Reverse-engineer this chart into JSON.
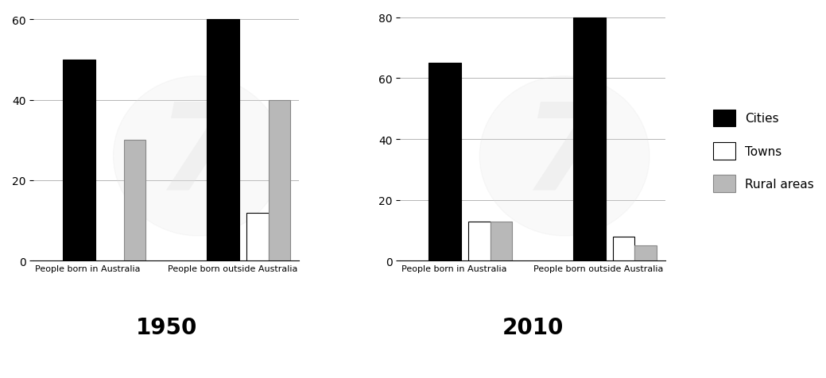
{
  "year1": "1950",
  "year2": "2010",
  "categories": [
    "People born in Australia",
    "People born outside Australia"
  ],
  "series": [
    "Cities",
    "Towns",
    "Rural areas"
  ],
  "colors": [
    "#000000",
    "#ffffff",
    "#b8b8b8"
  ],
  "edgecolors": [
    "#000000",
    "#000000",
    "#888888"
  ],
  "data_1950": {
    "People born in Australia": [
      50,
      0,
      30
    ],
    "People born outside Australia": [
      60,
      12,
      40
    ]
  },
  "data_2010": {
    "People born in Australia": [
      65,
      13,
      13
    ],
    "People born outside Australia": [
      80,
      8,
      5
    ]
  },
  "ylim_1950": [
    0,
    62
  ],
  "ylim_2010": [
    0,
    82
  ],
  "yticks_1950": [
    0,
    20,
    40,
    60
  ],
  "yticks_2010": [
    0,
    20,
    40,
    60,
    80
  ],
  "title_1950": "1950",
  "title_2010": "2010",
  "title_fontsize": 20,
  "cities_bar_width": 0.18,
  "small_bar_width": 0.12,
  "background_color": "#ffffff",
  "grid_color": "#aaaaaa",
  "legend_labels": [
    "Cities",
    "Towns",
    "Rural areas"
  ],
  "watermark_text": "7",
  "watermark_color": "#e0e0e0",
  "watermark_alpha": 0.35
}
